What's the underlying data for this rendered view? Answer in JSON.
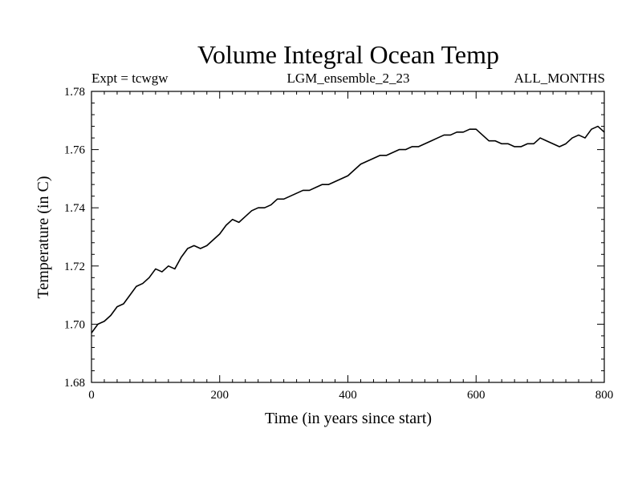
{
  "chart_data": {
    "type": "line",
    "title": "Volume Integral Ocean Temp",
    "subtitle_left": "Expt = tcwgw",
    "subtitle_center": "LGM_ensemble_2_23",
    "subtitle_right": "ALL_MONTHS",
    "xlabel": "Time (in years since start)",
    "ylabel": "Temperature (in C)",
    "xlim": [
      0,
      800
    ],
    "ylim": [
      1.68,
      1.78
    ],
    "x_ticks": [
      0,
      200,
      400,
      600,
      800
    ],
    "x_tick_labels": [
      "0",
      "200",
      "400",
      "600",
      "800"
    ],
    "y_ticks": [
      1.68,
      1.7,
      1.72,
      1.74,
      1.76,
      1.78
    ],
    "y_tick_labels": [
      "1.68",
      "1.70",
      "1.72",
      "1.74",
      "1.76",
      "1.78"
    ],
    "grid": false,
    "series": [
      {
        "name": "Volume Integral Ocean Temp",
        "color": "#000000",
        "x": [
          0,
          10,
          20,
          30,
          40,
          50,
          60,
          70,
          80,
          90,
          100,
          110,
          120,
          130,
          140,
          150,
          160,
          170,
          180,
          190,
          200,
          210,
          220,
          230,
          240,
          250,
          260,
          270,
          280,
          290,
          300,
          310,
          320,
          330,
          340,
          350,
          360,
          370,
          380,
          390,
          400,
          410,
          420,
          430,
          440,
          450,
          460,
          470,
          480,
          490,
          500,
          510,
          520,
          530,
          540,
          550,
          560,
          570,
          580,
          590,
          600,
          610,
          620,
          630,
          640,
          650,
          660,
          670,
          680,
          690,
          700,
          710,
          720,
          730,
          740,
          750,
          760,
          770,
          780,
          790,
          800
        ],
        "values": [
          1.697,
          1.7,
          1.701,
          1.703,
          1.706,
          1.707,
          1.71,
          1.713,
          1.714,
          1.716,
          1.719,
          1.718,
          1.72,
          1.719,
          1.723,
          1.726,
          1.727,
          1.726,
          1.727,
          1.729,
          1.731,
          1.734,
          1.736,
          1.735,
          1.737,
          1.739,
          1.74,
          1.74,
          1.741,
          1.743,
          1.743,
          1.744,
          1.745,
          1.746,
          1.746,
          1.747,
          1.748,
          1.748,
          1.749,
          1.75,
          1.751,
          1.753,
          1.755,
          1.756,
          1.757,
          1.758,
          1.758,
          1.759,
          1.76,
          1.76,
          1.761,
          1.761,
          1.762,
          1.763,
          1.764,
          1.765,
          1.765,
          1.766,
          1.766,
          1.767,
          1.767,
          1.765,
          1.763,
          1.763,
          1.762,
          1.762,
          1.761,
          1.761,
          1.762,
          1.762,
          1.764,
          1.763,
          1.762,
          1.761,
          1.762,
          1.764,
          1.765,
          1.764,
          1.767,
          1.768,
          1.766
        ]
      }
    ]
  }
}
